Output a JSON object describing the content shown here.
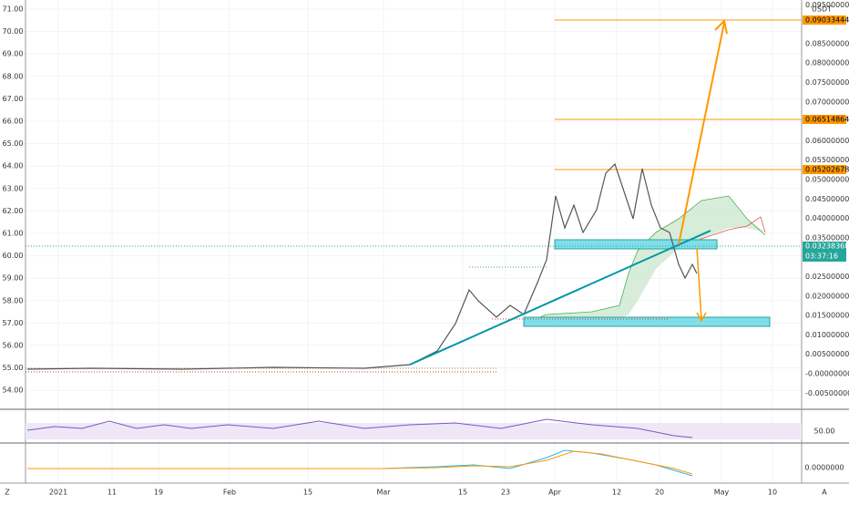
{
  "left_axis": {
    "ticks": [
      "71.00",
      "70.00",
      "69.00",
      "68.00",
      "67.00",
      "66.00",
      "65.00",
      "64.00",
      "63.00",
      "62.00",
      "61.00",
      "60.00",
      "59.00",
      "58.00",
      "57.00",
      "56.00",
      "55.00",
      "54.00"
    ]
  },
  "right_axis": {
    "unit": "USDT",
    "ticks": [
      "0.09500000",
      "0.08500000",
      "0.08000000",
      "0.07500000",
      "0.07000000",
      "0.06000000",
      "0.05500000",
      "0.05000000",
      "0.04500000",
      "0.04000000",
      "0.03500000",
      "0.02500000",
      "0.02000000",
      "0.01500000",
      "0.01000000",
      "0.00500000",
      "-0.00000000",
      "-0.00500000"
    ]
  },
  "price_tags": [
    "0.09033444",
    "0.06514864",
    "0.05202678",
    "0.03238368"
  ],
  "countdown": "03:37:16",
  "rsi": {
    "label": "50.00"
  },
  "macd": {
    "label": "0.0000000"
  },
  "x_axis": {
    "labels": [
      "2021",
      "11",
      "19",
      "Feb",
      "15",
      "Mar",
      "15",
      "23",
      "Apr",
      "12",
      "20",
      "May",
      "10"
    ]
  },
  "corner_left": "Z",
  "corner_right": "A"
}
